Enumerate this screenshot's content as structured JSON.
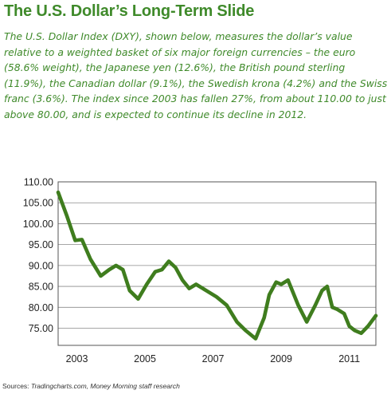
{
  "header": {
    "title": "The U.S. Dollar’s Long-Term Slide",
    "description": "The U.S. Dollar Index (DXY), shown below, measures the dollar’s value relative to a weighted basket of six major foreign currencies – the euro (58.6% weight), the Japanese yen (12.6%), the British pound sterling (11.9%), the Canadian dollar (9.1%), the Swedish krona (4.2%) and the Swiss franc (3.6%). The index since 2003 has fallen 27%, from about 110.00 to just above 80.00, and is expected to continue its decline in 2012."
  },
  "source": {
    "prefix": "Sources: ",
    "text": "Tradingcharts.com, Money Morning staff research"
  },
  "chart_data": {
    "type": "line",
    "title": "",
    "xlabel": "",
    "ylabel": "",
    "xlim": [
      2002.45,
      2011.78
    ],
    "ylim": [
      70.9,
      110.0
    ],
    "y_ticks": [
      "110.00",
      "105.00",
      "100.00",
      "95.00",
      "90.00",
      "85.00",
      "80.00",
      "75.00"
    ],
    "x_ticks": [
      "2003",
      "2005",
      "2007",
      "2009",
      "2011"
    ],
    "grid": true,
    "line_color": "#3f7d1e",
    "series": [
      {
        "x": [
          2002.45,
          2002.7,
          2002.95,
          2003.15,
          2003.4,
          2003.7,
          2003.95,
          2004.15,
          2004.35,
          2004.55,
          2004.8,
          2005.05,
          2005.3,
          2005.5,
          2005.7,
          2005.9,
          2006.1,
          2006.3,
          2006.5,
          2006.8,
          2007.1,
          2007.4,
          2007.7,
          2007.95,
          2008.25,
          2008.5,
          2008.65,
          2008.85,
          2009.0,
          2009.2,
          2009.5,
          2009.75,
          2010.0,
          2010.2,
          2010.35,
          2010.5,
          2010.65,
          2010.85,
          2011.0,
          2011.15,
          2011.35,
          2011.55,
          2011.78
        ],
        "y": [
          107.5,
          102.0,
          96.0,
          96.2,
          91.5,
          87.5,
          89.0,
          90.0,
          89.0,
          84.0,
          82.0,
          85.5,
          88.5,
          89.0,
          91.0,
          89.5,
          86.5,
          84.5,
          85.5,
          84.0,
          82.5,
          80.5,
          76.5,
          74.5,
          72.5,
          77.5,
          83.0,
          86.0,
          85.5,
          86.5,
          80.5,
          76.5,
          80.5,
          84.0,
          85.0,
          80.0,
          79.5,
          78.5,
          75.5,
          74.5,
          73.8,
          75.5,
          78.0
        ]
      }
    ]
  }
}
